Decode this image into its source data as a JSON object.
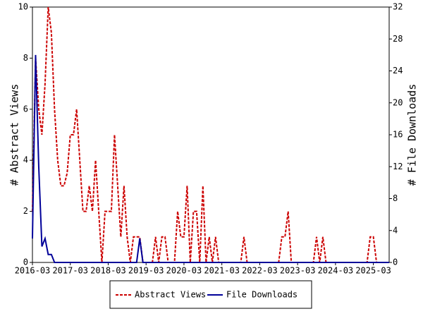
{
  "chart_data": {
    "type": "line",
    "x": [
      "2016-03",
      "2016-04",
      "2016-05",
      "2016-06",
      "2016-07",
      "2016-08",
      "2016-09",
      "2016-10",
      "2016-11",
      "2016-12",
      "2017-01",
      "2017-02",
      "2017-03",
      "2017-04",
      "2017-05",
      "2017-06",
      "2017-07",
      "2017-08",
      "2017-09",
      "2017-10",
      "2017-11",
      "2017-12",
      "2018-01",
      "2018-02",
      "2018-03",
      "2018-04",
      "2018-05",
      "2018-06",
      "2018-07",
      "2018-08",
      "2018-09",
      "2018-10",
      "2018-11",
      "2018-12",
      "2019-01",
      "2019-02",
      "2019-03",
      "2019-04",
      "2019-05",
      "2019-06",
      "2019-07",
      "2019-08",
      "2019-09",
      "2019-10",
      "2019-11",
      "2019-12",
      "2020-01",
      "2020-02",
      "2020-03",
      "2020-04",
      "2020-05",
      "2020-06",
      "2020-07",
      "2020-08",
      "2020-09",
      "2020-10",
      "2020-11",
      "2020-12",
      "2021-01",
      "2021-02",
      "2021-03",
      "2021-04",
      "2021-05",
      "2021-06",
      "2021-07",
      "2021-08",
      "2021-09",
      "2021-10",
      "2021-11",
      "2021-12",
      "2022-01",
      "2022-02",
      "2022-03",
      "2022-04",
      "2022-05",
      "2022-06",
      "2022-07",
      "2022-08",
      "2022-09",
      "2022-10",
      "2022-11",
      "2022-12",
      "2023-01",
      "2023-02",
      "2023-03",
      "2023-04",
      "2023-05",
      "2023-06",
      "2023-07",
      "2023-08",
      "2023-09",
      "2023-10",
      "2023-11",
      "2023-12",
      "2024-01",
      "2024-02",
      "2024-03",
      "2024-04",
      "2024-05",
      "2024-06",
      "2024-07",
      "2024-08",
      "2024-09",
      "2024-10",
      "2024-11",
      "2024-12",
      "2025-01",
      "2025-02",
      "2025-03",
      "2025-04",
      "2025-05",
      "2025-06",
      "2025-07",
      "2025-08"
    ],
    "xticks": [
      "2016-03",
      "2017-03",
      "2018-03",
      "2019-03",
      "2020-03",
      "2021-03",
      "2022-03",
      "2023-03",
      "2024-03",
      "2025-03"
    ],
    "ylabel": "# Abstract Views",
    "y2label": "# File Downloads",
    "ylim": [
      0,
      10
    ],
    "yticks": [
      0,
      2,
      4,
      6,
      8,
      10
    ],
    "y2lim": [
      0,
      32
    ],
    "y2ticks": [
      0,
      4,
      8,
      12,
      16,
      20,
      24,
      28,
      32
    ],
    "legend": "bottom",
    "series": [
      {
        "name": "Abstract Views",
        "color": "#cc0000",
        "dashed": true,
        "values": [
          2,
          8,
          6,
          5,
          7,
          10,
          9,
          6,
          4,
          3,
          3,
          3.5,
          5,
          5,
          6,
          4,
          2,
          2,
          3,
          2,
          4,
          2,
          0,
          2,
          2,
          2,
          5,
          3,
          1,
          3,
          1,
          0,
          1,
          1,
          1,
          0,
          0,
          0,
          0,
          1,
          0,
          1,
          1,
          0,
          0,
          0,
          2,
          1,
          1,
          3,
          0,
          2,
          2,
          0,
          3,
          0,
          1,
          0,
          1,
          0,
          0,
          0,
          0,
          0,
          0,
          0,
          0,
          1,
          0,
          0,
          0,
          0,
          0,
          0,
          0,
          0,
          0,
          0,
          0,
          1,
          1,
          2,
          0,
          0,
          0,
          0,
          0,
          0,
          0,
          0,
          1,
          0,
          1,
          0,
          0,
          0,
          0,
          0,
          0,
          0,
          0,
          0,
          0,
          0,
          0,
          0,
          0,
          1,
          1,
          0,
          0,
          0,
          0,
          0
        ]
      },
      {
        "name": "File Downloads",
        "color": "#000099",
        "axis": "y2",
        "dashed": false,
        "values": [
          3,
          26,
          12,
          2,
          3,
          1,
          1,
          0,
          0,
          0,
          0,
          0,
          0,
          0,
          0,
          0,
          0,
          0,
          0,
          0,
          0,
          0,
          0,
          0,
          0,
          0,
          0,
          0,
          0,
          0,
          0,
          0,
          0,
          0,
          3,
          0,
          0,
          0,
          0,
          0,
          0,
          0,
          0,
          0,
          0,
          0,
          0,
          0,
          0,
          0,
          0,
          0,
          0,
          0,
          0,
          0,
          0,
          0,
          0,
          0,
          0,
          0,
          0,
          0,
          0,
          0,
          0,
          0,
          0,
          0,
          0,
          0,
          0,
          0,
          0,
          0,
          0,
          0,
          0,
          0,
          0,
          0,
          0,
          0,
          0,
          0,
          0,
          0,
          0,
          0,
          0,
          0,
          0,
          0,
          0,
          0,
          0,
          0,
          0,
          0,
          0,
          0,
          0,
          0,
          0,
          0,
          0,
          0,
          0,
          0,
          0,
          0,
          0,
          0
        ]
      }
    ]
  }
}
